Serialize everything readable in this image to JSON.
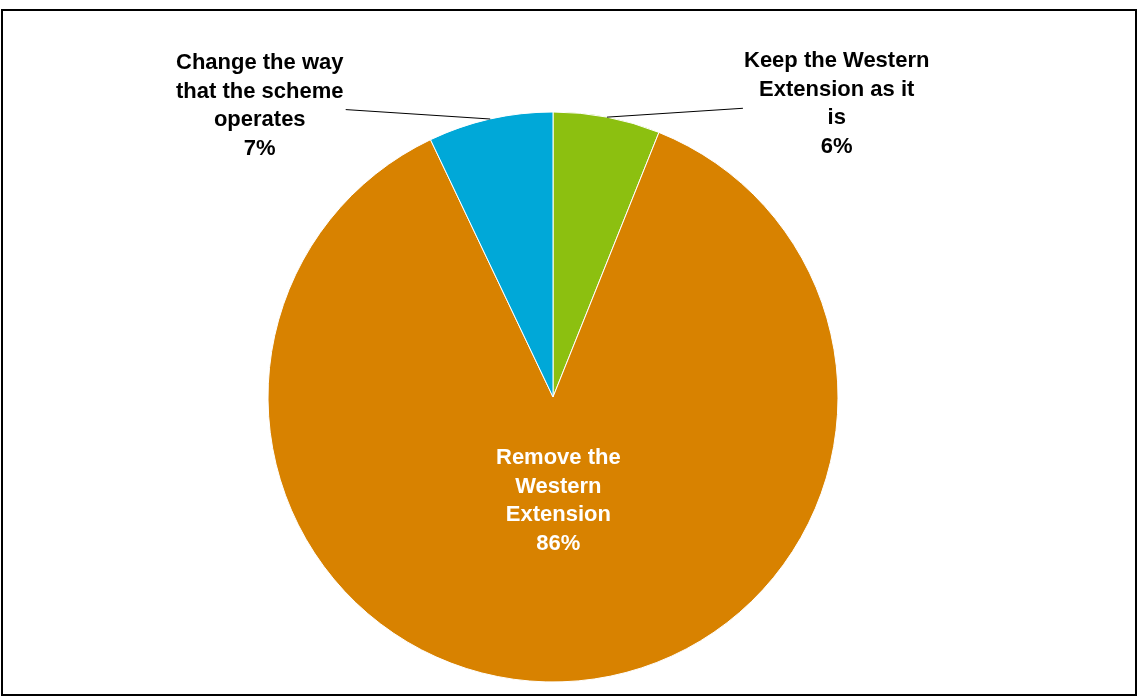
{
  "chart_data": {
    "type": "pie",
    "categories": [
      "Keep the Western Extension as it is",
      "Remove the Western Extension",
      "Change the way that the scheme operates"
    ],
    "values": [
      6,
      86,
      7
    ],
    "value_labels": [
      "6%",
      "86%",
      "7%"
    ],
    "colors": [
      "#8cc010",
      "#d88200",
      "#00a8d8"
    ],
    "legend": false
  }
}
